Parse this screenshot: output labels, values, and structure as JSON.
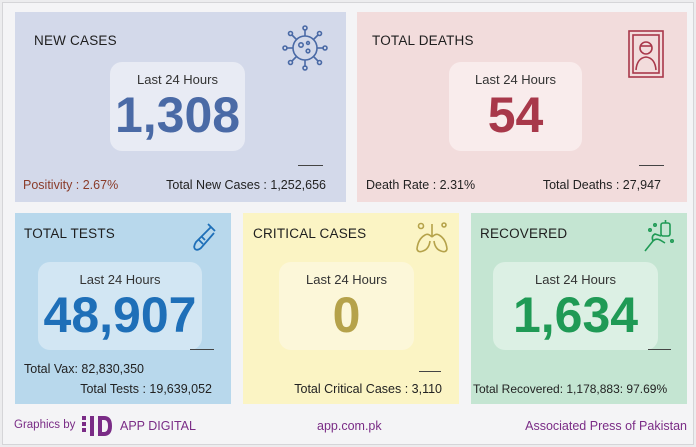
{
  "colors": {
    "new_cases": "#4a6aa6",
    "deaths": "#a8384a",
    "tests": "#1e6fb8",
    "critical": "#b5a24a",
    "recovered": "#1f9a55",
    "purple_text": "#7a2c86",
    "positivity": "#8a3c2a"
  },
  "new_cases": {
    "title": "NEW CASES",
    "period": "Last 24 Hours",
    "value": "1,308",
    "positivity": "Positivity : 2.67%",
    "total": "Total New Cases : 1,252,656",
    "icon": "virus-icon"
  },
  "deaths": {
    "title": "TOTAL DEATHS",
    "period": "Last 24 Hours",
    "value": "54",
    "rate": "Death Rate : 2.31%",
    "total": "Total Deaths : 27,947",
    "icon": "portrait-frame-icon"
  },
  "tests": {
    "title": "TOTAL TESTS",
    "period": "Last 24 Hours",
    "value": "48,907",
    "vax": "Total Vax: 82,830,350",
    "total": "Total Tests : 19,639,052",
    "icon": "test-tube-icon"
  },
  "critical": {
    "title": "CRITICAL CASES",
    "period": "Last 24 Hours",
    "value": "0",
    "total": "Total Critical Cases : 3,110",
    "icon": "lungs-icon"
  },
  "recovered": {
    "title": "RECOVERED",
    "period": "Last 24 Hours",
    "value": "1,634",
    "total": "Total Recovered: 1,178,883: 97.69%",
    "icon": "sanitizer-hand-icon"
  },
  "footer": {
    "graphics_by": "Graphics by",
    "brand": "APP DIGITAL",
    "website": "app.com.pk",
    "agency": "Associated Press of Pakistan"
  }
}
